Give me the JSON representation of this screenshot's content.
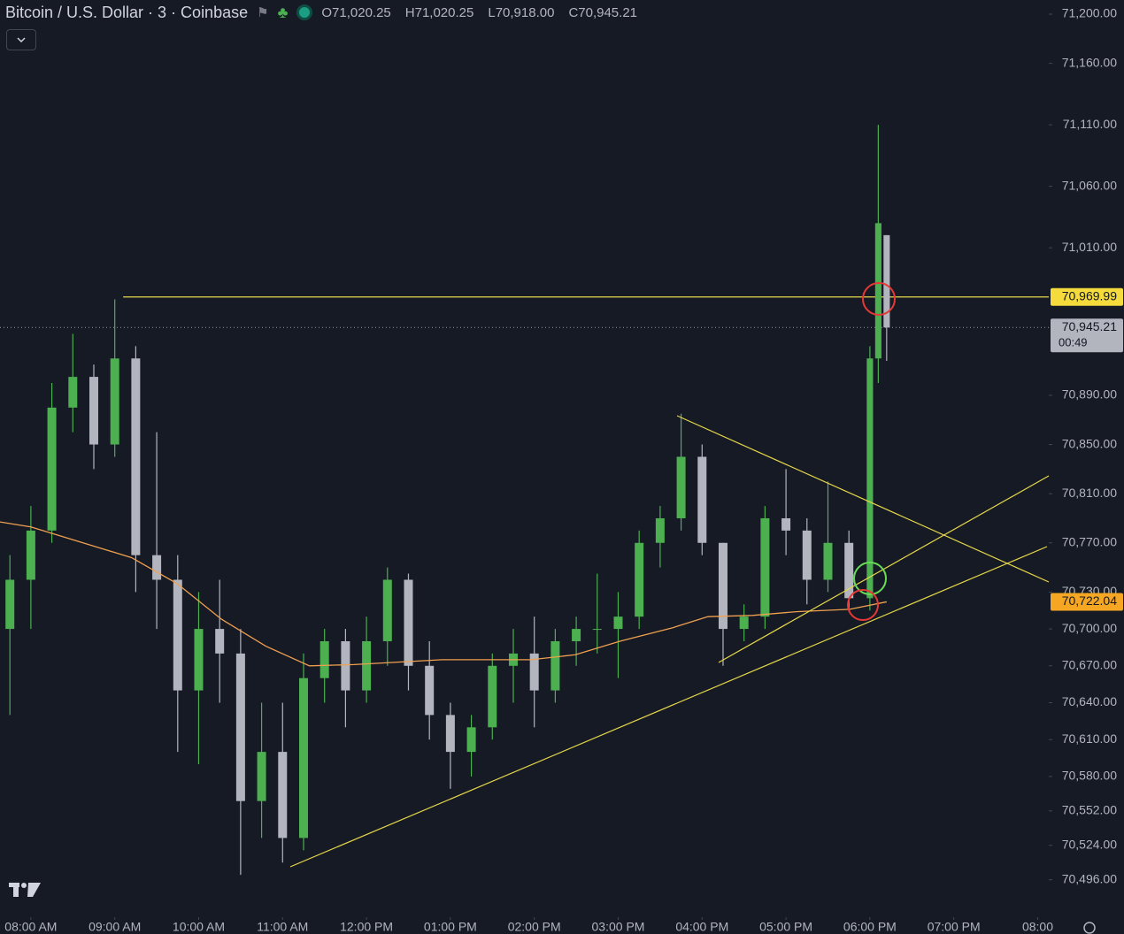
{
  "chart_data": {
    "type": "candlestick",
    "title": "Bitcoin / U.S. Dollar · 3 · Coinbase",
    "ohlc_text": [
      "O71,020.25",
      "H71,020.25",
      "L70,918.00",
      "C70,945.21"
    ],
    "up_color": "#4caf50",
    "down_color": "#b2b5be",
    "x": [
      7.75,
      8.0,
      8.25,
      8.5,
      8.75,
      9.0,
      9.25,
      9.5,
      9.75,
      10.0,
      10.25,
      10.5,
      10.75,
      11.0,
      11.25,
      11.5,
      11.75,
      12.0,
      12.25,
      12.5,
      12.75,
      13.0,
      13.25,
      13.5,
      13.75,
      14.0,
      14.25,
      14.5,
      14.75,
      15.0,
      15.25,
      15.5,
      15.75,
      16.0,
      16.25,
      16.5,
      16.75,
      17.0,
      17.25,
      17.5,
      17.75,
      18.0,
      18.1,
      18.2
    ],
    "open": [
      70700,
      70740,
      70780,
      70880,
      70905,
      70850,
      70920,
      70760,
      70740,
      70650,
      70700,
      70680,
      70560,
      70600,
      70530,
      70660,
      70690,
      70650,
      70690,
      70740,
      70670,
      70630,
      70600,
      70620,
      70670,
      70680,
      70650,
      70690,
      70700,
      70700,
      70710,
      70770,
      70790,
      70840,
      70770,
      70700,
      70710,
      70790,
      70780,
      70740,
      70770,
      70725,
      70920,
      71020.25
    ],
    "high": [
      70760,
      70800,
      70900,
      70940,
      70915,
      70968,
      70930,
      70860,
      70760,
      70730,
      70740,
      70700,
      70640,
      70640,
      70680,
      70700,
      70700,
      70710,
      70750,
      70745,
      70690,
      70640,
      70630,
      70680,
      70700,
      70710,
      70700,
      70710,
      70745,
      70730,
      70780,
      70800,
      70875,
      70850,
      70770,
      70720,
      70800,
      70830,
      70790,
      70820,
      70780,
      70930,
      71110,
      71020.25
    ],
    "low": [
      70630,
      70700,
      70770,
      70860,
      70830,
      70840,
      70730,
      70700,
      70600,
      70590,
      70640,
      70500,
      70530,
      70510,
      70520,
      70640,
      70620,
      70640,
      70670,
      70650,
      70610,
      70570,
      70580,
      70610,
      70640,
      70620,
      70640,
      70670,
      70680,
      70660,
      70700,
      70750,
      70780,
      70760,
      70670,
      70690,
      70700,
      70760,
      70720,
      70730,
      70715,
      70715,
      70900,
      70918
    ],
    "close": [
      70740,
      70780,
      70880,
      70905,
      70850,
      70920,
      70760,
      70740,
      70650,
      70700,
      70680,
      70560,
      70600,
      70530,
      70660,
      70690,
      70650,
      70690,
      70740,
      70670,
      70630,
      70600,
      70620,
      70670,
      70680,
      70650,
      70690,
      70700,
      70700,
      70710,
      70770,
      70790,
      70840,
      70770,
      70700,
      70710,
      70790,
      70780,
      70740,
      70770,
      70725,
      70920,
      71030,
      70945.21
    ],
    "ma": {
      "color": "#f0a050",
      "x": [
        7.632,
        8.0,
        9.2,
        9.74,
        10.27,
        10.8,
        11.32,
        11.85,
        12.9,
        13.96,
        14.49,
        15.02,
        15.65,
        16.07,
        16.6,
        17.12,
        17.76,
        18.2
      ],
      "values": [
        70787,
        70783,
        70758,
        70737,
        70708,
        70686,
        70670,
        70671,
        70675,
        70675,
        70679,
        70690,
        70701,
        70710,
        70711,
        70714,
        70716,
        70722.04
      ]
    },
    "hline": {
      "value": 70969.99,
      "label": "70,969.99",
      "start": 9.1,
      "color": "#e6d84a"
    },
    "last_price": {
      "value": 70945.21,
      "label": "70,945.21"
    },
    "countdown": "00:49",
    "ma_label": {
      "value": 70722.04,
      "label": "70,722.04"
    },
    "xlim": [
      7.632,
      20.132
    ],
    "ylim": [
      70467,
      71211.5
    ],
    "xticks": [
      {
        "value": 8,
        "label": "08:00 AM"
      },
      {
        "value": 9,
        "label": "09:00 AM"
      },
      {
        "value": 10,
        "label": "10:00 AM"
      },
      {
        "value": 11,
        "label": "11:00 AM"
      },
      {
        "value": 12,
        "label": "12:00 PM"
      },
      {
        "value": 13,
        "label": "01:00 PM"
      },
      {
        "value": 14,
        "label": "02:00 PM"
      },
      {
        "value": 15,
        "label": "03:00 PM"
      },
      {
        "value": 16,
        "label": "04:00 PM"
      },
      {
        "value": 17,
        "label": "05:00 PM"
      },
      {
        "value": 18,
        "label": "06:00 PM"
      },
      {
        "value": 19,
        "label": "07:00 PM"
      },
      {
        "value": 20,
        "label": "08:00"
      }
    ],
    "yticks": [
      {
        "value": 71200,
        "label": "71,200.00"
      },
      {
        "value": 71160,
        "label": "71,160.00"
      },
      {
        "value": 71110,
        "label": "71,110.00"
      },
      {
        "value": 71060,
        "label": "71,060.00"
      },
      {
        "value": 71010,
        "label": "71,010.00"
      },
      {
        "value": 70890,
        "label": "70,890.00"
      },
      {
        "value": 70850,
        "label": "70,850.00"
      },
      {
        "value": 70810,
        "label": "70,810.00"
      },
      {
        "value": 70770,
        "label": "70,770.00"
      },
      {
        "value": 70730,
        "label": "70,730.00"
      },
      {
        "value": 70700,
        "label": "70,700.00"
      },
      {
        "value": 70670,
        "label": "70,670.00"
      },
      {
        "value": 70640,
        "label": "70,640.00"
      },
      {
        "value": 70610,
        "label": "70,610.00"
      },
      {
        "value": 70580,
        "label": "70,580.00"
      },
      {
        "value": 70552,
        "label": "70,552.00"
      },
      {
        "value": 70524,
        "label": "70,524.00"
      },
      {
        "value": 70496,
        "label": "70,496.00"
      }
    ]
  }
}
